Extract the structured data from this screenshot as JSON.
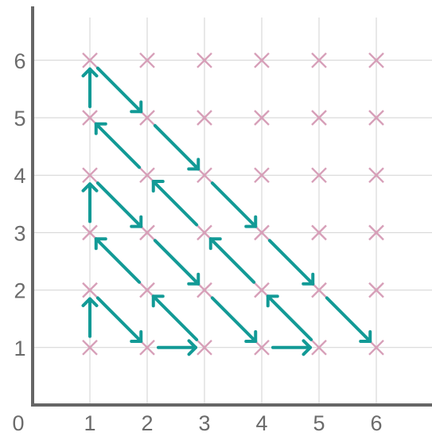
{
  "diagram": {
    "x_ticks": [
      "1",
      "2",
      "3",
      "4",
      "5",
      "6"
    ],
    "y_ticks": [
      "1",
      "2",
      "3",
      "4",
      "5",
      "6"
    ],
    "origin_label": "0",
    "grid": {
      "columns": [
        1,
        2,
        3,
        4,
        5,
        6
      ],
      "rows": [
        1,
        2,
        3,
        4,
        5,
        6
      ]
    },
    "marker": "x-cross",
    "arrows": [
      {
        "from": [
          1,
          1
        ],
        "to": [
          1,
          2
        ]
      },
      {
        "from": [
          1,
          2
        ],
        "to": [
          2,
          1
        ]
      },
      {
        "from": [
          2,
          1
        ],
        "to": [
          3,
          1
        ]
      },
      {
        "from": [
          3,
          1
        ],
        "to": [
          2,
          2
        ]
      },
      {
        "from": [
          2,
          2
        ],
        "to": [
          1,
          3
        ]
      },
      {
        "from": [
          1,
          3
        ],
        "to": [
          1,
          4
        ]
      },
      {
        "from": [
          1,
          4
        ],
        "to": [
          2,
          3
        ]
      },
      {
        "from": [
          2,
          3
        ],
        "to": [
          3,
          2
        ]
      },
      {
        "from": [
          3,
          2
        ],
        "to": [
          4,
          1
        ]
      },
      {
        "from": [
          4,
          1
        ],
        "to": [
          5,
          1
        ]
      },
      {
        "from": [
          5,
          1
        ],
        "to": [
          4,
          2
        ]
      },
      {
        "from": [
          4,
          2
        ],
        "to": [
          3,
          3
        ]
      },
      {
        "from": [
          3,
          3
        ],
        "to": [
          2,
          4
        ]
      },
      {
        "from": [
          2,
          4
        ],
        "to": [
          1,
          5
        ]
      },
      {
        "from": [
          1,
          5
        ],
        "to": [
          1,
          6
        ]
      },
      {
        "from": [
          1,
          6
        ],
        "to": [
          2,
          5
        ]
      },
      {
        "from": [
          2,
          5
        ],
        "to": [
          3,
          4
        ]
      },
      {
        "from": [
          3,
          4
        ],
        "to": [
          4,
          3
        ]
      },
      {
        "from": [
          4,
          3
        ],
        "to": [
          5,
          2
        ]
      },
      {
        "from": [
          5,
          2
        ],
        "to": [
          6,
          1
        ]
      }
    ]
  },
  "colors": {
    "axis": "#666666",
    "grid": "#d2d2d2",
    "marker": "#d79fb8",
    "arrow": "#129a96",
    "tick_text": "#6b6b6b"
  }
}
